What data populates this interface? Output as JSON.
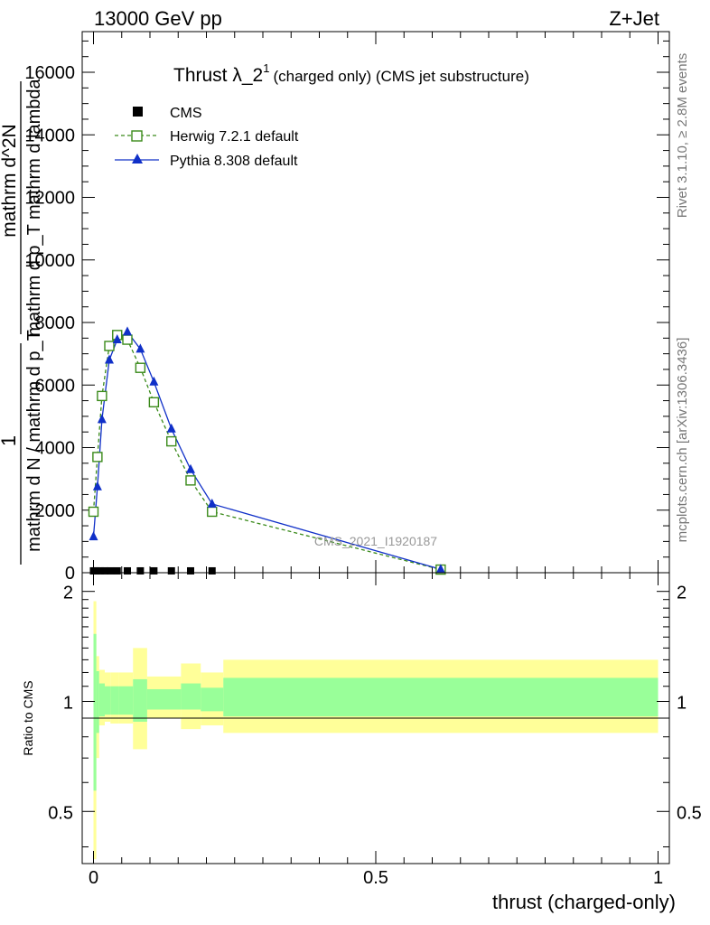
{
  "header": {
    "left": "13000 GeV pp",
    "right": "Z+Jet"
  },
  "title": {
    "main": "Thrust λ_2",
    "sup": "1",
    "sub": "(charged only) (CMS jet substructure)"
  },
  "side_labels": {
    "rivet": "Rivet 3.1.10, ≥ 2.8M events",
    "mcplots": "mcplots.cern.ch [arXiv:1306.3436]"
  },
  "watermark": "CMS_2021_I1920187",
  "y_label": {
    "numerator": "1",
    "denominator": "mathrm d N / mathrm d p_T",
    "second": "mathrm d^2N",
    "second_denominator": "mathrm d p_T mathrm d lambda"
  },
  "ratio_label": "Ratio to CMS",
  "x_label": "thrust (charged-only)",
  "colors": {
    "cms": "#000000",
    "herwig": "#3a8a1a",
    "pythia": "#1030c8",
    "band_outer": "#ffff99",
    "band_inner": "#99ff99"
  },
  "chart_data": [
    {
      "type": "line",
      "title": "Thrust λ_2^1 (charged only) (CMS jet substructure)",
      "xlabel": "thrust (charged-only)",
      "ylabel": "1 / (mathrm d N / mathrm d p_T) · mathrm d^2N / (mathrm d p_T mathrm d lambda)",
      "xlim": [
        -0.02,
        1.02
      ],
      "ylim": [
        0,
        17300
      ],
      "y_ticks": [
        0,
        2000,
        4000,
        6000,
        8000,
        10000,
        12000,
        14000,
        16000
      ],
      "y_tick_labels": [
        "0",
        "2000",
        "4000",
        "6000",
        "8000",
        "10000",
        "12000",
        "14000",
        "16000"
      ],
      "legend_position": "top-left",
      "series": [
        {
          "name": "CMS",
          "marker": "square",
          "x": [
            0.0,
            0.005,
            0.012,
            0.02,
            0.03,
            0.042,
            0.06,
            0.083,
            0.107,
            0.138,
            0.172,
            0.21
          ],
          "y": [
            30,
            30,
            30,
            30,
            30,
            30,
            30,
            30,
            30,
            30,
            30,
            30
          ]
        },
        {
          "name": "Herwig 7.2.1 default",
          "marker": "open-square",
          "style": "dashed",
          "x": [
            0.0,
            0.007,
            0.015,
            0.028,
            0.042,
            0.06,
            0.083,
            0.107,
            0.138,
            0.172,
            0.21,
            0.615
          ],
          "y": [
            1950,
            3700,
            5650,
            7250,
            7600,
            7450,
            6550,
            5450,
            4200,
            2950,
            1950,
            100
          ]
        },
        {
          "name": "Pythia 8.308 default",
          "marker": "triangle",
          "style": "solid",
          "x": [
            0.0,
            0.007,
            0.015,
            0.028,
            0.042,
            0.06,
            0.083,
            0.107,
            0.138,
            0.172,
            0.21,
            0.615
          ],
          "y": [
            1150,
            2750,
            4900,
            6800,
            7450,
            7700,
            7150,
            6100,
            4600,
            3300,
            2200,
            110
          ]
        }
      ]
    },
    {
      "type": "area",
      "title": "",
      "xlabel": "thrust (charged-only)",
      "ylabel": "Ratio to CMS",
      "xlim": [
        -0.02,
        1.02
      ],
      "ylim": [
        0.36,
        2.25
      ],
      "y_ticks": [
        0.5,
        1,
        2
      ],
      "y_tick_labels": [
        "0.5",
        "1",
        "2"
      ],
      "x_ticks": [
        0,
        0.5,
        1
      ],
      "x_tick_labels": [
        "0",
        "0.5",
        "1"
      ],
      "reference_line": 1,
      "bin_edges": [
        0.0,
        0.005,
        0.01,
        0.02,
        0.03,
        0.045,
        0.07,
        0.095,
        0.12,
        0.155,
        0.19,
        0.23,
        1.0
      ],
      "bands": [
        {
          "kind": "total uncertainty",
          "lower": [
            0.37,
            0.7,
            0.86,
            0.88,
            0.87,
            0.87,
            0.74,
            0.9,
            0.9,
            0.84,
            0.86,
            0.82
          ],
          "upper": [
            1.88,
            1.33,
            1.22,
            1.2,
            1.2,
            1.2,
            1.4,
            1.17,
            1.17,
            1.27,
            1.2,
            1.3
          ]
        },
        {
          "kind": "statistical uncertainty",
          "lower": [
            0.57,
            0.82,
            0.91,
            0.92,
            0.92,
            0.92,
            0.88,
            0.95,
            0.95,
            0.95,
            0.94,
            0.91
          ],
          "upper": [
            1.53,
            1.21,
            1.12,
            1.1,
            1.1,
            1.1,
            1.15,
            1.08,
            1.08,
            1.12,
            1.09,
            1.16
          ]
        }
      ]
    }
  ]
}
